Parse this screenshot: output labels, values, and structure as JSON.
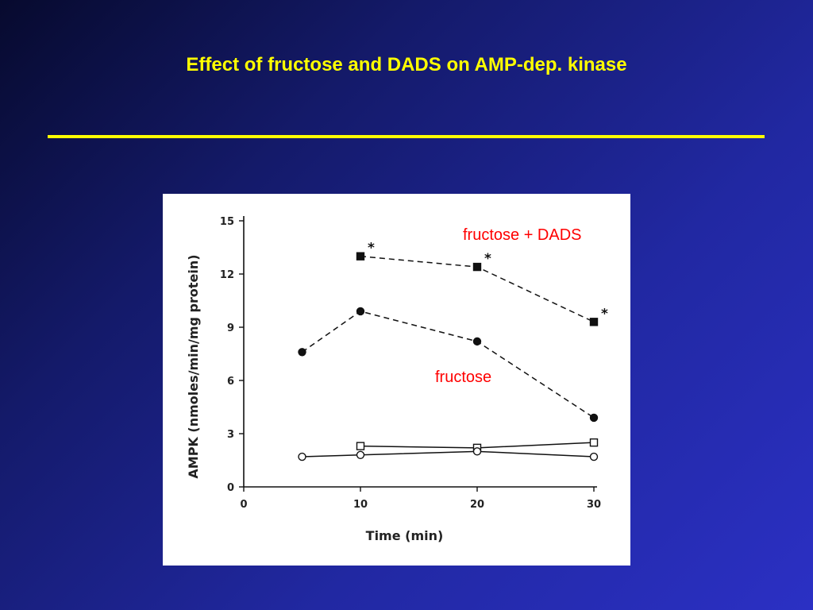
{
  "slide": {
    "title": "Effect of fructose and DADS on AMP-dep. kinase"
  },
  "colors": {
    "background": "#2128a2",
    "title": "#ffff00",
    "rule": "#ffff00",
    "annotation": "#ff0000",
    "plot_ink": "#111111"
  },
  "chart_data": {
    "type": "line",
    "title": "",
    "xlabel": "Time (min)",
    "ylabel": "AMPK (nmoles/min/mg protein)",
    "xlim": [
      0,
      30
    ],
    "ylim": [
      0,
      15
    ],
    "x_ticks": [
      0,
      10,
      20,
      30
    ],
    "y_ticks": [
      0,
      3,
      6,
      9,
      12,
      15
    ],
    "grid": false,
    "series": [
      {
        "marker": "filled-square",
        "line": "dashed",
        "x": [
          10,
          20,
          30
        ],
        "y": [
          13.0,
          12.4,
          9.3
        ],
        "significant": [
          true,
          true,
          true
        ]
      },
      {
        "marker": "filled-circle",
        "line": "dashed",
        "x": [
          5,
          10,
          20,
          30
        ],
        "y": [
          7.6,
          9.9,
          8.2,
          3.9
        ]
      },
      {
        "marker": "open-square",
        "line": "solid",
        "x": [
          10,
          20,
          30
        ],
        "y": [
          2.3,
          2.2,
          2.5
        ]
      },
      {
        "marker": "open-circle",
        "line": "solid",
        "x": [
          5,
          10,
          20,
          30
        ],
        "y": [
          1.7,
          1.8,
          2.0,
          1.7
        ]
      }
    ],
    "annotations": [
      {
        "text": "fructose + DADS",
        "color": "#ff0000"
      },
      {
        "text": "fructose",
        "color": "#ff0000"
      }
    ],
    "significance_marker": "*"
  }
}
